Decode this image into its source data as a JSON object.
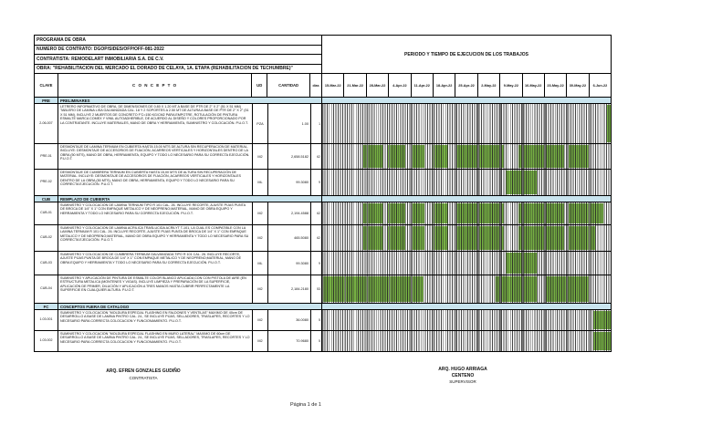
{
  "colors": {
    "bar_green": "#76b043",
    "band_blue": "#c9e4ee"
  },
  "header": {
    "program_title": "PROGRAMA DE OBRA",
    "contract": "NUMERO DE CONTRATO: DGOP/SIDES/OFP/OFF-081-2022",
    "contractor": "CONTRATISTA: REMODELART INMOBILIARIA S.A. DE C.V.",
    "work": "OBRA: \"REHABILITACION DEL MERCADO EL DORADO DE CELAYA, 1A. ETAPA (REHABILITACION DE TECHUMBRE)\"",
    "period_title": "PERIODO Y TIEMPO DE EJECUCION DE LOS TRABAJOS"
  },
  "columns": {
    "clave": "CLAVE",
    "concepto": "C O N C E P T O",
    "ud": "UD",
    "cantidad": "CANTIDAD",
    "dias": "dias"
  },
  "schedule": {
    "weeks": [
      "15-Mar-22",
      "21-Mar-22",
      "28-Mar-22",
      "4-Apr-22",
      "11-Apr-22",
      "18-Apr-22",
      "25-Apr-22",
      "2-May-22",
      "9-May-22",
      "16-May-22",
      "23-May-22",
      "30-May-22",
      "6-Jun-22"
    ],
    "weeks_total": 13
  },
  "table": {
    "rows": [
      {
        "type": "section",
        "code": "PRE",
        "title": "PRELIMINARES"
      },
      {
        "type": "item",
        "clave": "2-06-007",
        "concepto": "LETRERO INFORMATIVO DE OBRA, DE DIMENSIONES DE 0.80 X 1.20 MT A BASE DE PTR DE 2\" X 2\" (51 X 51 MM) TABLERO DE LAMINA LISA GALVANIZADA CAL. 18 Y 2 SOPORTES A 2.50 MT DE ALTURA A BASE DE PTR DE 2\" X 2\" (51 X 51 MM), INCLUYE 2 MUERTOS DE CONCRETO F'C=150 KG/CM2 PARA EMPOTRE, ROTULACIÓN DE PINTURA ESMALTE MARCA COMEX Y VINIL AUTOADHERIBLE, DE ACUERDO AL DISEÑO Y COLORES PROPORCIONADO POR LA CONTRATANTE. INCLUYE MATERIALES, MANO DE OBRA Y HERRAMIENTA, SUMINISTRO Y COLOCACIÓN. P.U.O.T.",
        "ud": "PZA",
        "cantidad": "1.00",
        "dias": "1",
        "bars": [
          [
            12.85,
            13
          ]
        ]
      },
      {
        "type": "item",
        "clave": "PRE-01",
        "concepto": "DESMONTAJE DE LAMINA TERNIUM EN CUBIERTA HASTA 15.00 MTS DE ALTURA SIN RECUPERACION DE MATERIAL. INCLUYE: DESMONTAJE DE ACCESORIOS DE FIJACIÓN, ACARREOS VERTICALES Y HORIZONTALES DENTRO DE LA OBRA (50 MTS), MANO DE OBRA, HERRAMIENTA, EQUIPO Y TODO LO NECESARIO PARA SU CORRECTA EJECUCIÓN. P.U.O.T.",
        "ud": "M2",
        "cantidad": "2,658.5182",
        "dias": "62",
        "bars": [
          [
            1.85,
            2.75
          ],
          [
            2.96,
            3.76
          ],
          [
            3.98,
            4.61
          ],
          [
            4.99,
            5.68
          ],
          [
            6.01,
            8.2
          ],
          [
            8.84,
            10.9
          ],
          [
            11.1,
            12.0
          ]
        ]
      },
      {
        "type": "item",
        "clave": "PRE-02",
        "concepto": "DESMONTAJE DE CUMBRERA TERNIUM EN CUBIERTA HASTA 15.00 MTS DE ALTURA SIN RECUPERACIÓN DE MATERIAL. INCLUYE: DESMONTAJE DE ACCESORIOS DE FIJACIÓN, ACARREOS VERTICALES Y HORIZONTALES DENTRO DE LA OBRA (50 MTS), MANO DE OBRA, HERRAMIENTA, EQUIPO Y TODO LO NECESARIO PARA SU CORRECTA EJECUCIÓN. P.U.O.T.",
        "ud": "ML",
        "cantidad": "99.3080",
        "dias": "9",
        "bars": [
          [
            8.26,
            9.68
          ]
        ]
      },
      {
        "type": "section",
        "code": "CUB",
        "title": "REMPLAZO DE CUBIERTA"
      },
      {
        "type": "item",
        "clave": "CUB-01",
        "concepto": "SUMINISTRO Y COLOCACION DE LAMINA TERNIUM TIPO R 101 CAL. 26.  INCLUYE RECORTE, AJUSTE PIJAS PUNTA DE BROCA DE 1/4\" X 1\" CON EMPAQUE  METALICO Y DE NEOPRENO;MATERIAL, MANO DE OBRA EQUIPO Y HERRAMIENTA Y TODO LO NECESARIO PARA SU CORRECTA EJECUCIÓN. P.U.O.T.",
        "ud": "M2",
        "cantidad": "2,194.4588",
        "dias": "62",
        "bars": [
          [
            1.85,
            2.75
          ],
          [
            2.96,
            3.76
          ],
          [
            3.98,
            4.61
          ],
          [
            4.99,
            5.68
          ],
          [
            6.01,
            8.2
          ],
          [
            8.84,
            10.9
          ],
          [
            11.1,
            12.67
          ]
        ]
      },
      {
        "type": "item",
        "clave": "CUB-02",
        "concepto": "SUMINISTRO Y COLOCACION DE LAMINA ACRILICA TRASLUCIDA ACRILYT T-101, LA CUAL ES COMPATIBLE CON LA LAMINA TERNIUM R 101 CAL. 26.  INCLUYE RECORTE, AJUSTE PIJAS PUNTA DE BROCA DE 1/4\" X 1\" CON EMPAQUE  METALICO Y DE NEOPRENO;MATERIAL, MANO DE OBRA EQUIPO Y HERRAMIENTA Y TODO LO NECESARIO PARA SU CORRECTA EJECUCIÓN. P.U.O.T.",
        "ud": "M2",
        "cantidad": "465.5080",
        "dias": "62",
        "bars": [
          [
            1.85,
            2.75
          ],
          [
            2.96,
            3.76
          ],
          [
            3.98,
            4.61
          ],
          [
            4.99,
            5.68
          ],
          [
            6.01,
            8.2
          ],
          [
            8.84,
            10.9
          ],
          [
            11.1,
            12.3
          ]
        ]
      },
      {
        "type": "item",
        "clave": "CUB-03",
        "concepto": "SUMINISTRO Y COLOCACION DE CUMBRERA TERNIUM GALVANIZADA TIPO R 101 CAL. 26.  INCLUYE RECORTE, AJUSTE PIJAS PUNTA DE BROCA DE 1/4\" X 1\" CON EMPAQUE  METALICO Y DE NEOPRENO;MATERIAL, MANO DE OBRA EQUIPO Y HERRAMIENTA Y TODO LO NECESARIO PARA SU CORRECTA EJECUCIÓN. P.U.O.T.",
        "ud": "ML",
        "cantidad": "99.3080",
        "dias": "9",
        "bars": [
          [
            8.26,
            9.68
          ]
        ]
      },
      {
        "type": "item",
        "clave": "CUB-04",
        "concepto": "SUMINISTRO Y APLICACIÓN DE PINTURA DE ESMALTE COLOR BLANCO  APLICADA CON CON PISTOLA DE AIRE (EN ESTRUCTURA METALICA (MONTENES Y VIGAS). INCLUYE LIMPIEZA Y PREPARACIÓN DE LA SUPERFICIE, APLICACIÓN DE PRIMER, DILUCIÓN Y APLICACIÓN A TRES MANOS HASTA CUBRIR PERFECTAMENTE LA SUPERFICIE  EN CUALQUIER ALTURA. P.U.O.T.",
        "ud": "M2",
        "cantidad": "2,184.2180",
        "dias": "53",
        "bars": [
          [
            0.05,
            4.55
          ],
          [
            7.8,
            9.68
          ],
          [
            10.07,
            12.0
          ]
        ]
      },
      {
        "type": "section",
        "code": "FC",
        "title": "CONCEPTOS FUERA DE CATALOGO"
      },
      {
        "type": "item",
        "clave": "1.03.001",
        "concepto": "SUMINISTRO Y COLOCACION \"MOLDURA ESPECIAL FLASHING EN FALDONES Y VENTILAS\" MAXIMO DE 40cm DE DESARROLLO A BASE DE LAMINA PINTRO CAL. 24., SE INCLUYE PIJAS, SELLADORES, TRASLAPES, RECORTES Y LO NECESARIO PARA CORRECTA COLOCACION Y FUNCIONAMIENTO. P.U.O.T.",
        "ud": "M2",
        "cantidad": "36.0080",
        "dias": "5",
        "bars": [
          [
            12.2,
            13
          ]
        ]
      },
      {
        "type": "item",
        "clave": "1.03.002",
        "concepto": "SUMINISTRO Y COLOCACION \"MOLDURA ESPECIAL FLASHING EN MURO LATERAL\" MAXIMO DE 60cm DE DESARROLLO A BASE DE LAMINA PINTRO CAL. 24., SE INCLUYE PIJAS, SELLADORES, TRASLAPES, RECORTES Y LO NECESARIO PARA CORRECTA COLOCACION Y FUNCIONAMIENTO. P.U.O.T.",
        "ud": "M2",
        "cantidad": "70.9680",
        "dias": "5",
        "bars": [
          [
            12.2,
            13
          ]
        ]
      }
    ]
  },
  "signatures": {
    "left_name": "ARQ. EFREN GONZALES GUDIÑO",
    "left_role": "CONTRATISTA",
    "right_name_line1": "ARQ. HUGO ARRIAGA",
    "right_name_line2": "CENTENO",
    "right_role": "SUPERVISOR"
  },
  "page": {
    "footer": "Página 1 de 1"
  }
}
